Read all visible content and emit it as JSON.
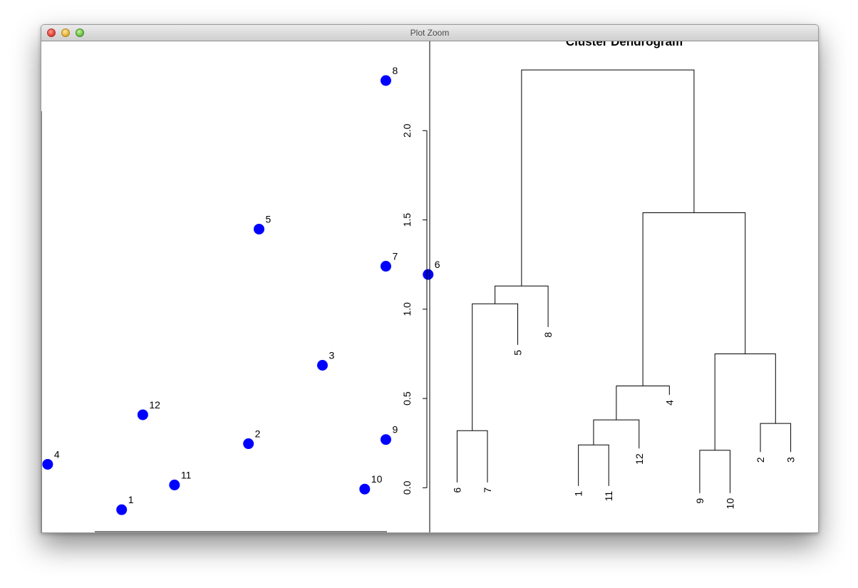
{
  "window": {
    "title": "Plot Zoom"
  },
  "chart_data": [
    {
      "type": "scatter",
      "marker_color": "#0000ff",
      "points": [
        {
          "label": "1",
          "x": 0.33,
          "y": 0.0
        },
        {
          "label": "2",
          "x": 0.45,
          "y": 0.16
        },
        {
          "label": "3",
          "x": 0.52,
          "y": 0.35
        },
        {
          "label": "4",
          "x": 0.26,
          "y": 0.11
        },
        {
          "label": "5",
          "x": 0.46,
          "y": 0.68
        },
        {
          "label": "6",
          "x": 0.62,
          "y": 0.57
        },
        {
          "label": "7",
          "x": 0.58,
          "y": 0.59
        },
        {
          "label": "8",
          "x": 0.58,
          "y": 1.04
        },
        {
          "label": "9",
          "x": 0.58,
          "y": 0.17
        },
        {
          "label": "10",
          "x": 0.56,
          "y": 0.05
        },
        {
          "label": "11",
          "x": 0.38,
          "y": 0.06
        },
        {
          "label": "12",
          "x": 0.35,
          "y": 0.23
        }
      ],
      "xlim": [
        0.254,
        0.6215
      ],
      "ylim": [
        -0.055,
        1.135
      ]
    },
    {
      "type": "dendrogram",
      "title": "Cluster Dendrogram",
      "ylim": [
        -0.25,
        2.5
      ],
      "yticks": [
        "0.0",
        "0.5",
        "1.0",
        "1.5",
        "2.0"
      ],
      "leaves": [
        {
          "label": "6",
          "height": 0.03
        },
        {
          "label": "7",
          "height": 0.03
        },
        {
          "label": "5",
          "height": 0.8
        },
        {
          "label": "8",
          "height": 0.9
        },
        {
          "label": "1",
          "height": 0.01
        },
        {
          "label": "11",
          "height": 0.01
        },
        {
          "label": "12",
          "height": 0.22
        },
        {
          "label": "4",
          "height": 0.52
        },
        {
          "label": "9",
          "height": -0.03
        },
        {
          "label": "10",
          "height": -0.03
        },
        {
          "label": "2",
          "height": 0.2
        },
        {
          "label": "3",
          "height": 0.2
        }
      ],
      "merges": [
        {
          "a": "L6",
          "b": "L7",
          "height": 0.32
        },
        {
          "a": "L1",
          "b": "L11",
          "height": 0.24
        },
        {
          "a": "L9",
          "b": "L10",
          "height": 0.21
        },
        {
          "a": "L2",
          "b": "L3",
          "height": 0.36
        },
        {
          "a": "M2",
          "b": "L12",
          "height": 0.38
        },
        {
          "a": "M5",
          "b": "L4",
          "height": 0.57
        },
        {
          "a": "M3",
          "b": "M4",
          "height": 0.75
        },
        {
          "a": "M1",
          "b": "L5",
          "height": 1.03
        },
        {
          "a": "M8",
          "b": "L8",
          "height": 1.13
        },
        {
          "a": "M6",
          "b": "M7",
          "height": 1.54
        },
        {
          "a": "M9",
          "b": "M10",
          "height": 2.34
        }
      ]
    }
  ]
}
